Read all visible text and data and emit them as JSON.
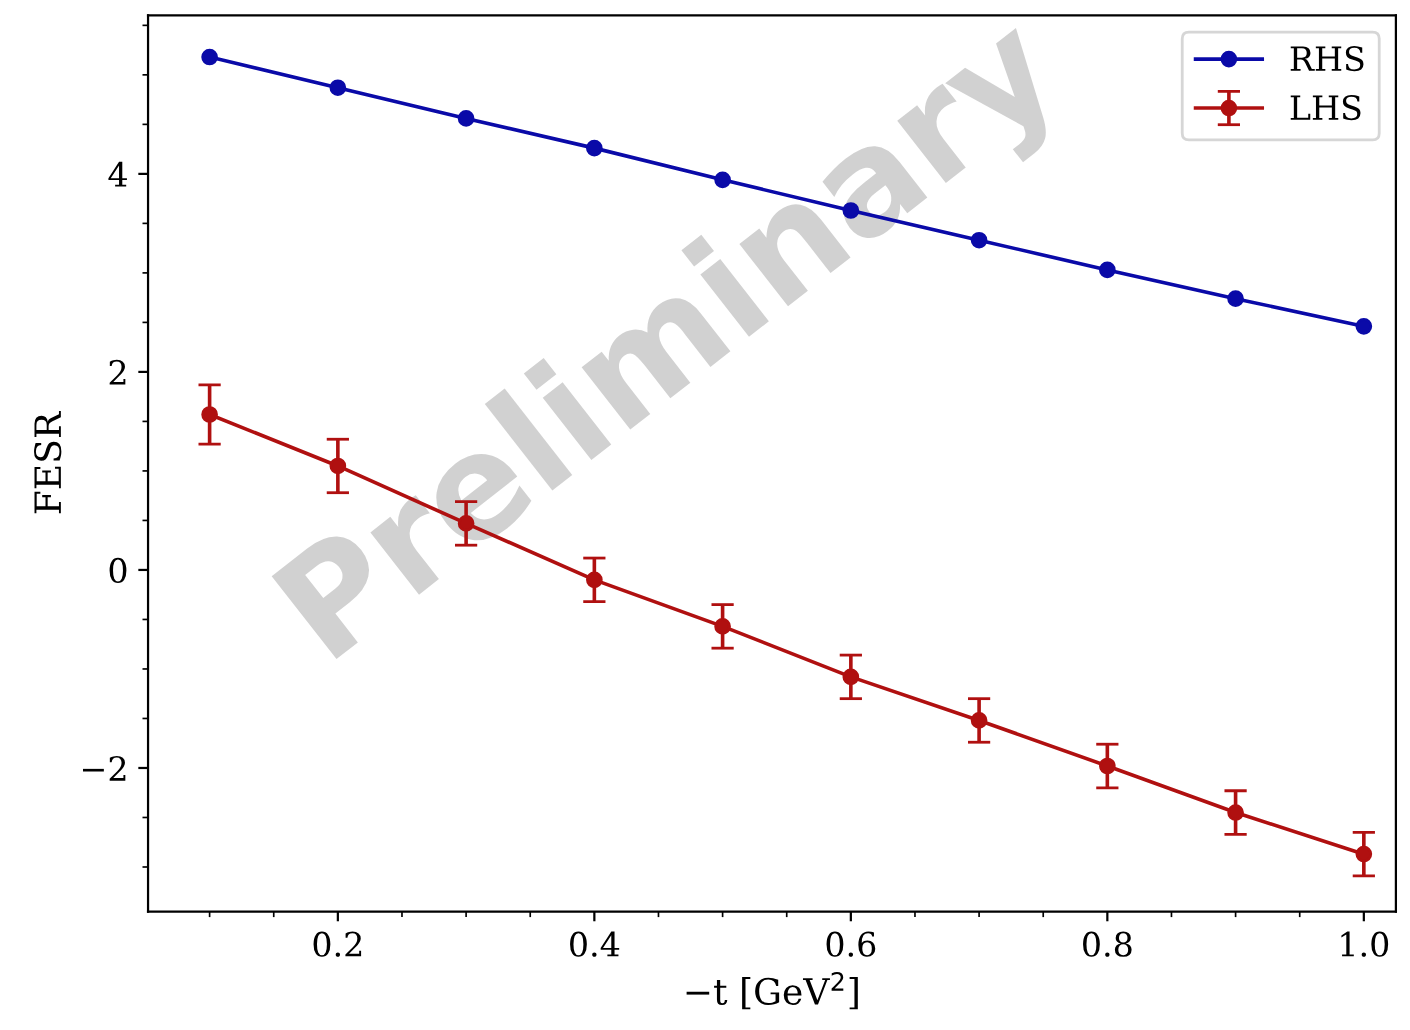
{
  "chart_data": {
    "type": "line",
    "xlabel": "−t [GeV$^{2}$]",
    "ylabel": "FESR",
    "x": [
      0.1,
      0.2,
      0.3,
      0.4,
      0.5,
      0.6,
      0.7,
      0.8,
      0.9,
      1.0
    ],
    "series": [
      {
        "name": "RHS",
        "color": "#0a0aa8",
        "values": [
          5.18,
          4.87,
          4.56,
          4.26,
          3.94,
          3.63,
          3.33,
          3.03,
          2.74,
          2.46
        ]
      },
      {
        "name": "LHS",
        "color": "#b01010",
        "values": [
          1.57,
          1.05,
          0.47,
          -0.1,
          -0.57,
          -1.08,
          -1.52,
          -1.98,
          -2.45,
          -2.87
        ],
        "errors": [
          0.3,
          0.27,
          0.22,
          0.22,
          0.22,
          0.22,
          0.22,
          0.22,
          0.22,
          0.22
        ]
      }
    ],
    "xlim": [
      0.052,
      1.025
    ],
    "ylim": [
      -3.45,
      5.6
    ],
    "xticks": [
      0.2,
      0.4,
      0.6,
      0.8,
      {
        "value": 1,
        "label": "1.0"
      }
    ],
    "yticks": [
      {
        "value": -2,
        "label": "−2"
      },
      0,
      2,
      4
    ],
    "marker": "circle",
    "line_style": "solid",
    "grid": false,
    "legend": "top right",
    "annotations": [
      "Preliminary"
    ]
  }
}
